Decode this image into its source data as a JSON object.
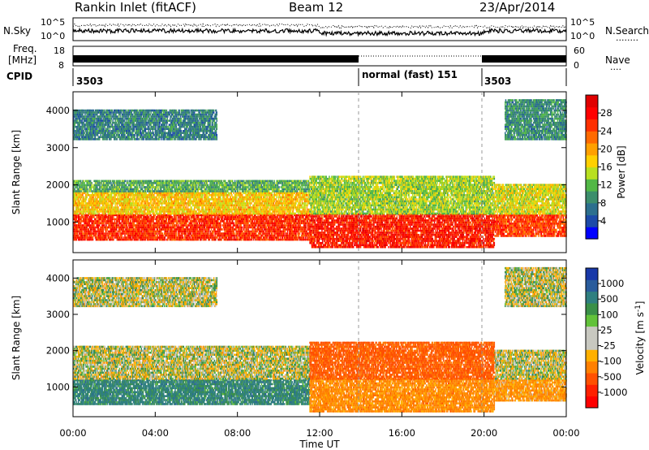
{
  "header": {
    "title": "Rankin Inlet (fitACF)",
    "beam": "Beam 12",
    "date": "23/Apr/2014"
  },
  "noise_panel": {
    "left_label": "N.Sky",
    "right_label": "N.Search",
    "left_ticks": [
      "10^5",
      "10^0"
    ],
    "right_ticks": [
      "10^5",
      "10^0"
    ]
  },
  "freq_panel": {
    "left_label_top": "Freq.",
    "left_label_bottom": "[MHz]",
    "left_ticks": [
      "18",
      "8"
    ],
    "right_label": "Nave",
    "right_ticks": [
      "60",
      "0"
    ]
  },
  "cpid": {
    "label": "CPID",
    "segments": [
      {
        "start_hour": 0,
        "end_hour": 14,
        "text": "3503"
      },
      {
        "start_hour": 14,
        "end_hour": 20,
        "text": "normal (fast) 151"
      },
      {
        "start_hour": 20,
        "end_hour": 24,
        "text": "3503"
      }
    ]
  },
  "x_axis": {
    "label": "Time UT",
    "ticks": [
      "00:00",
      "04:00",
      "08:00",
      "12:00",
      "16:00",
      "20:00",
      "00:00"
    ],
    "range_hours": [
      0,
      24
    ]
  },
  "power_panel": {
    "ylabel": "Slant Range [km]",
    "yticks": [
      "1000",
      "2000",
      "3000",
      "4000"
    ],
    "colorbar_label": "Power [dB]",
    "colorbar_ticks": [
      "28",
      "24",
      "20",
      "16",
      "12",
      "8",
      "4"
    ],
    "colors": [
      "#0000ff",
      "#1c4aa8",
      "#2c6f8e",
      "#3c8e6c",
      "#52b846",
      "#b8e020",
      "#ffd000",
      "#ffa000",
      "#ff6a00",
      "#ff3000",
      "#ff0000",
      "#e00000"
    ]
  },
  "velocity_panel": {
    "ylabel": "Slant Range [km]",
    "yticks": [
      "1000",
      "2000",
      "3000",
      "4000"
    ],
    "colorbar_label": "Velocity [m s",
    "colorbar_label_sup": "-1",
    "colorbar_label_end": "]",
    "colorbar_ticks": [
      "1000",
      "500",
      "100",
      "25",
      "-25",
      "-100",
      "-500",
      "-1000"
    ],
    "colors": [
      "#1838a8",
      "#2a5c9c",
      "#2f7f80",
      "#3a9048",
      "#62c23a",
      "#c8c8c0",
      "#c8c8c0",
      "#ffb000",
      "#ff8000",
      "#ff5000",
      "#ff2000",
      "#ff0000"
    ]
  },
  "chart_data": {
    "type": "heatmap",
    "title": "Rankin Inlet (fitACF)",
    "subtitle": "Beam 12",
    "date": "23/Apr/2014",
    "xlabel": "Time UT",
    "xlim_hours": [
      0,
      24
    ],
    "ylim_km": [
      180,
      4500
    ],
    "ylabel": "Slant Range [km]",
    "panels": [
      {
        "name": "Power [dB]",
        "zlim": [
          0,
          32
        ],
        "echo_regions": [
          {
            "t0": 0,
            "t1": 11.5,
            "r0": 500,
            "r1": 1200,
            "value_db": 26
          },
          {
            "t0": 0,
            "t1": 11.5,
            "r0": 1200,
            "r1": 1800,
            "value_db": 18
          },
          {
            "t0": 0,
            "t1": 11.5,
            "r0": 1800,
            "r1": 2100,
            "value_db": 11
          },
          {
            "t0": 0,
            "t1": 7,
            "r0": 3200,
            "r1": 4000,
            "value_db": 8
          },
          {
            "t0": 11.5,
            "t1": 20.5,
            "r0": 300,
            "r1": 1200,
            "value_db": 27
          },
          {
            "t0": 11.5,
            "t1": 20.5,
            "r0": 1200,
            "r1": 2200,
            "value_db": 14
          },
          {
            "t0": 20.5,
            "t1": 24,
            "r0": 600,
            "r1": 1200,
            "value_db": 25
          },
          {
            "t0": 20.5,
            "t1": 24,
            "r0": 1200,
            "r1": 2000,
            "value_db": 16
          },
          {
            "t0": 21,
            "t1": 24,
            "r0": 3200,
            "r1": 4300,
            "value_db": 9
          }
        ]
      },
      {
        "name": "Velocity [m s-1]",
        "zlim": [
          -1000,
          1000
        ],
        "echo_regions": [
          {
            "t0": 0,
            "t1": 11.5,
            "r0": 500,
            "r1": 1200,
            "value_ms": 150
          },
          {
            "t0": 0,
            "t1": 11.5,
            "r0": 1200,
            "r1": 2100,
            "value_ms": 0
          },
          {
            "t0": 0,
            "t1": 7,
            "r0": 3200,
            "r1": 4000,
            "value_ms": 0
          },
          {
            "t0": 11.5,
            "t1": 20.5,
            "r0": 300,
            "r1": 1200,
            "value_ms": -150
          },
          {
            "t0": 11.5,
            "t1": 20.5,
            "r0": 1200,
            "r1": 2200,
            "value_ms": -300
          },
          {
            "t0": 20.5,
            "t1": 24,
            "r0": 600,
            "r1": 1200,
            "value_ms": -120
          },
          {
            "t0": 20.5,
            "t1": 24,
            "r0": 1200,
            "r1": 2000,
            "value_ms": 0
          },
          {
            "t0": 21,
            "t1": 24,
            "r0": 3200,
            "r1": 4300,
            "value_ms": 0
          }
        ]
      }
    ]
  }
}
